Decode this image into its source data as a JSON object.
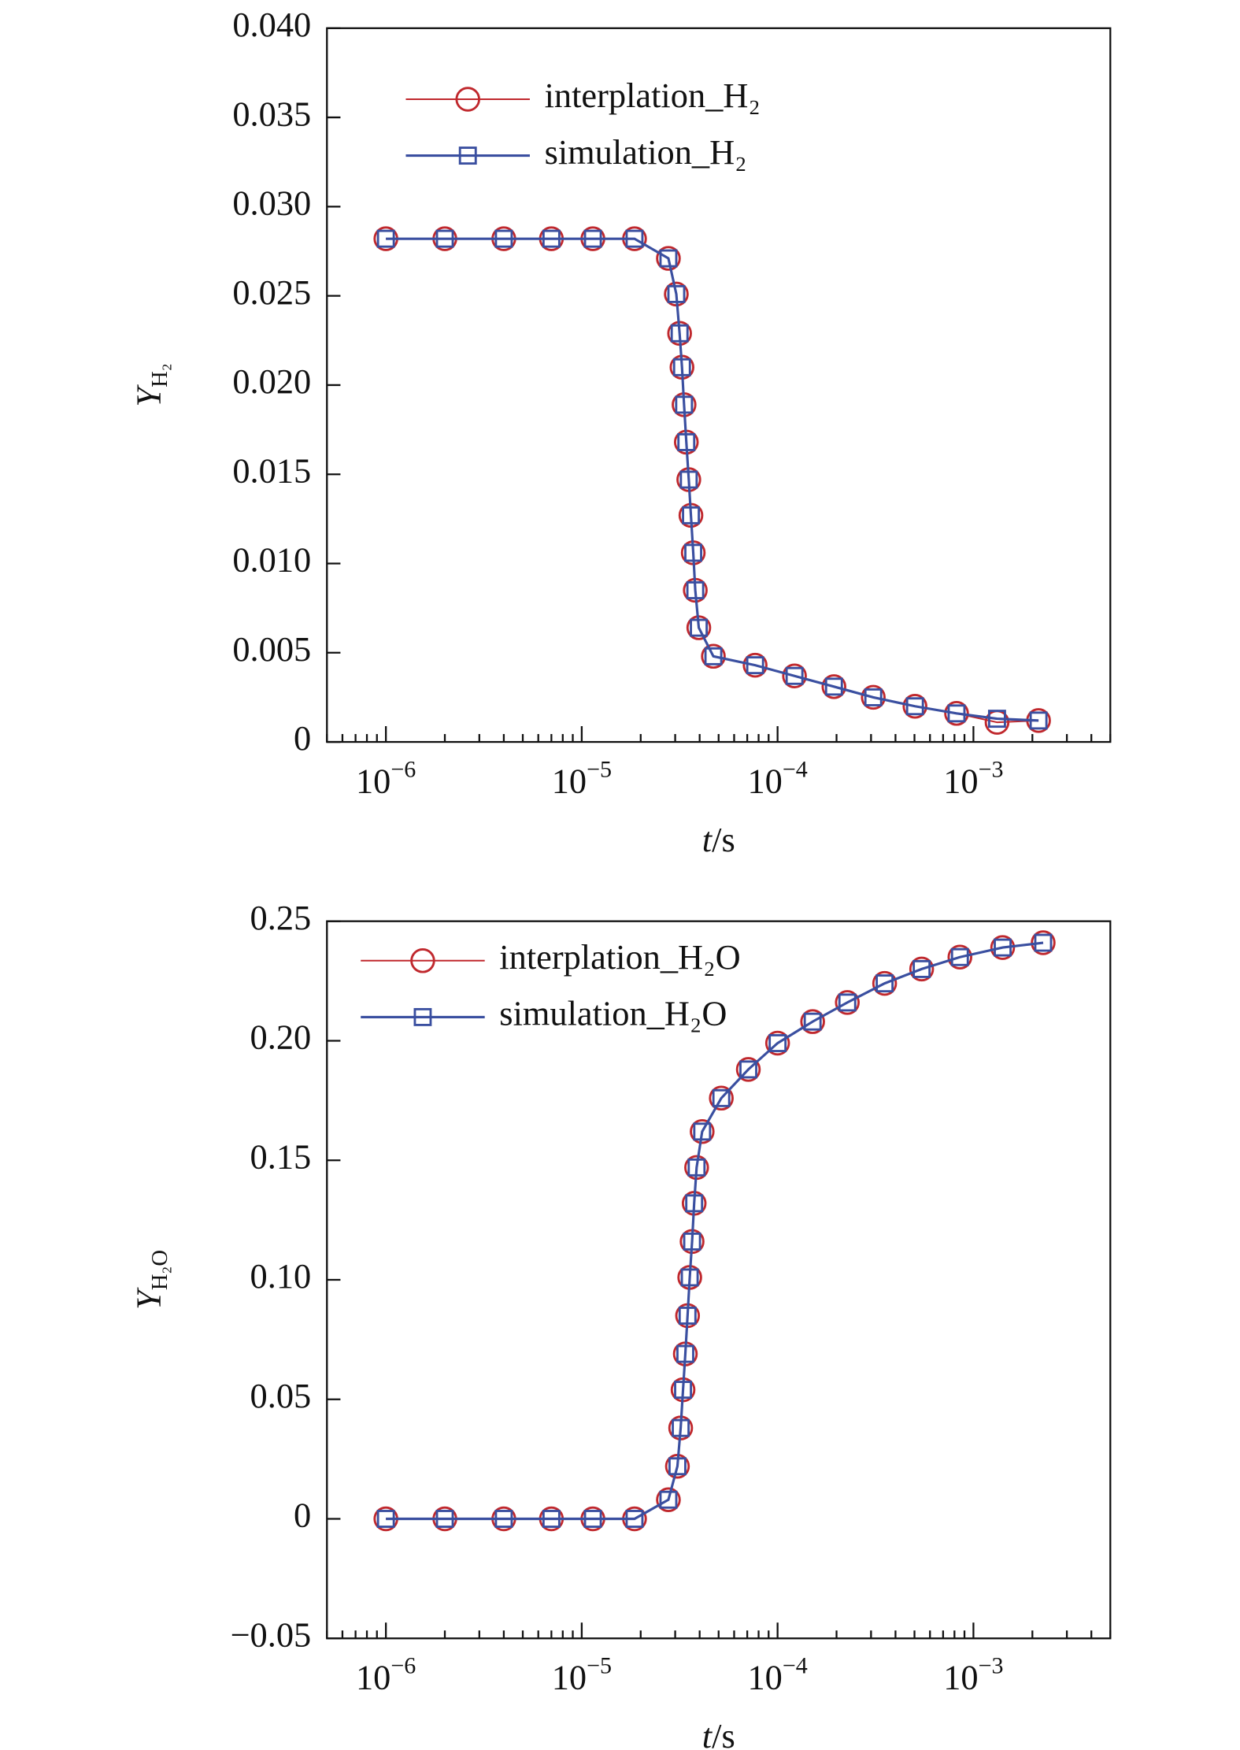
{
  "chart_data": [
    {
      "type": "line",
      "xlabel": {
        "var": "t",
        "unit": "/s"
      },
      "ylabel": {
        "var": "Y",
        "sub": "H₂"
      },
      "xscale": "log",
      "xlim": [
        5e-07,
        0.005
      ],
      "xticks": [
        {
          "value": 1e-06,
          "label": "10",
          "exponent": "−6"
        },
        {
          "value": 1e-05,
          "label": "10",
          "exponent": "−5"
        },
        {
          "value": 0.0001,
          "label": "10",
          "exponent": "−4"
        },
        {
          "value": 0.001,
          "label": "10",
          "exponent": "−3"
        }
      ],
      "ylim": [
        0,
        0.04
      ],
      "yticks": [
        0,
        0.005,
        {
          "value": 0.01,
          "label": "0.010"
        },
        0.015,
        {
          "value": 0.02,
          "label": "0.020"
        },
        0.025,
        {
          "value": 0.03,
          "label": "0.030"
        },
        0.035,
        {
          "value": 0.04,
          "label": "0.040"
        }
      ],
      "legend": "upper left",
      "x": [
        1e-06,
        2e-06,
        4e-06,
        7e-06,
        1.14e-05,
        1.86e-05,
        2.77e-05,
        3.04e-05,
        3.16e-05,
        3.25e-05,
        3.33e-05,
        3.42e-05,
        3.52e-05,
        3.61e-05,
        3.71e-05,
        3.8e-05,
        3.96e-05,
        4.7e-05,
        7.68e-05,
        0.000122,
        0.000194,
        0.000308,
        0.000503,
        0.00082,
        0.00132,
        0.00215
      ],
      "series": [
        {
          "name": "interplation_H₂",
          "color": "#c0282d",
          "marker": "circle",
          "values": [
            0.0282,
            0.0282,
            0.0282,
            0.0282,
            0.0282,
            0.0282,
            0.0271,
            0.0251,
            0.0229,
            0.021,
            0.0189,
            0.0168,
            0.0147,
            0.0127,
            0.0106,
            0.0085,
            0.0064,
            0.0048,
            0.0043,
            0.0037,
            0.0031,
            0.0025,
            0.002,
            0.0016,
            0.0011,
            0.0012
          ]
        },
        {
          "name": "simulation_H₂",
          "color": "#3a4fa0",
          "marker": "square",
          "values": [
            0.0282,
            0.0282,
            0.0282,
            0.0282,
            0.0282,
            0.0282,
            0.0271,
            0.0251,
            0.0229,
            0.021,
            0.0189,
            0.0168,
            0.0147,
            0.0127,
            0.0106,
            0.0085,
            0.0064,
            0.0048,
            0.0043,
            0.0037,
            0.0031,
            0.0025,
            0.002,
            0.0016,
            0.0013,
            0.0012
          ]
        }
      ]
    },
    {
      "type": "line",
      "xlabel": {
        "var": "t",
        "unit": "/s"
      },
      "ylabel": {
        "var": "Y",
        "sub": "H₂O"
      },
      "xscale": "log",
      "xlim": [
        5e-07,
        0.005
      ],
      "xticks": [
        {
          "value": 1e-06,
          "label": "10",
          "exponent": "−6"
        },
        {
          "value": 1e-05,
          "label": "10",
          "exponent": "−5"
        },
        {
          "value": 0.0001,
          "label": "10",
          "exponent": "−4"
        },
        {
          "value": 0.001,
          "label": "10",
          "exponent": "−3"
        }
      ],
      "ylim": [
        -0.05,
        0.25
      ],
      "yticks": [
        {
          "value": -0.05,
          "label": "−0.05"
        },
        0,
        0.05,
        {
          "value": 0.1,
          "label": "0.10"
        },
        0.15,
        {
          "value": 0.2,
          "label": "0.20"
        },
        0.25
      ],
      "legend": "upper left",
      "x": [
        1e-06,
        2e-06,
        4e-06,
        7e-06,
        1.14e-05,
        1.86e-05,
        2.77e-05,
        3.08e-05,
        3.2e-05,
        3.29e-05,
        3.38e-05,
        3.47e-05,
        3.56e-05,
        3.66e-05,
        3.75e-05,
        3.86e-05,
        4.12e-05,
        5.16e-05,
        7.09e-05,
        0.0001,
        0.000151,
        0.000227,
        0.000352,
        0.000544,
        0.000853,
        0.00141,
        0.00227
      ],
      "series": [
        {
          "name": "interplation_H₂O",
          "color": "#c0282d",
          "marker": "circle",
          "values": [
            0,
            0,
            0,
            0,
            0,
            0,
            0.008,
            0.022,
            0.038,
            0.054,
            0.069,
            0.085,
            0.101,
            0.116,
            0.132,
            0.147,
            0.162,
            0.176,
            0.188,
            0.199,
            0.208,
            0.216,
            0.224,
            0.23,
            0.235,
            0.239,
            0.241
          ]
        },
        {
          "name": "simulation_H₂O",
          "color": "#3a4fa0",
          "marker": "square",
          "values": [
            0,
            0,
            0,
            0,
            0,
            0,
            0.008,
            0.022,
            0.038,
            0.054,
            0.069,
            0.085,
            0.101,
            0.116,
            0.132,
            0.147,
            0.162,
            0.176,
            0.188,
            0.199,
            0.208,
            0.216,
            0.224,
            0.23,
            0.235,
            0.239,
            0.241
          ]
        }
      ]
    }
  ]
}
